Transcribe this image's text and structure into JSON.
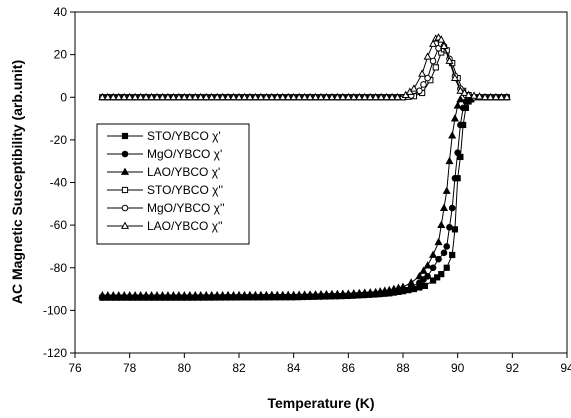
{
  "chart_data": {
    "type": "line",
    "title": "",
    "xlabel": "Temperature (K)",
    "ylabel": "AC Magnetic Susceptibility (arb.unit)",
    "xlim": [
      76,
      94
    ],
    "ylim": [
      -120,
      40
    ],
    "xticks": [
      "76",
      "78",
      "80",
      "82",
      "84",
      "86",
      "88",
      "90",
      "92",
      "94"
    ],
    "yticks": [
      "-120",
      "-100",
      "-80",
      "-60",
      "-40",
      "-20",
      "0",
      "20",
      "40"
    ],
    "grid": false,
    "legend_position": "left",
    "series": [
      {
        "name": "STO/YBCO χ'",
        "marker": "square",
        "filled": true,
        "x": [
          77.0,
          80.0,
          84.0,
          86.0,
          87.0,
          87.5,
          88.0,
          88.4,
          88.8,
          89.1,
          89.4,
          89.6,
          89.8,
          89.9,
          90.0,
          90.1,
          90.2,
          90.3,
          90.4,
          90.5
        ],
        "y": [
          -94,
          -94,
          -93.8,
          -93.2,
          -92.5,
          -92,
          -91,
          -90,
          -88.5,
          -86,
          -83,
          -80,
          -74,
          -62,
          -38,
          -28,
          -13,
          -5,
          -2,
          -1
        ]
      },
      {
        "name": "MgO/YBCO χ'",
        "marker": "circle",
        "filled": true,
        "x": [
          77.0,
          80.0,
          84.0,
          86.0,
          87.0,
          87.5,
          88.0,
          88.3,
          88.6,
          88.9,
          89.1,
          89.3,
          89.5,
          89.6,
          89.7,
          89.8,
          89.9,
          90.0,
          90.1,
          90.2,
          90.3
        ],
        "y": [
          -94,
          -94,
          -93.8,
          -93.2,
          -92.5,
          -91.8,
          -90.5,
          -89,
          -87,
          -84,
          -80,
          -76,
          -73,
          -70,
          -61,
          -52,
          -38,
          -26,
          -13,
          -5,
          -2
        ]
      },
      {
        "name": "LAO/YBCO χ'",
        "marker": "triangle",
        "filled": true,
        "x": [
          77.0,
          80.0,
          84.0,
          86.0,
          87.0,
          87.5,
          88.0,
          88.3,
          88.6,
          88.9,
          89.1,
          89.3,
          89.4,
          89.5,
          89.6,
          89.7,
          89.8,
          89.9,
          90.0,
          90.1
        ],
        "y": [
          -93,
          -93,
          -92.8,
          -92.2,
          -91.5,
          -90.5,
          -89,
          -87,
          -84,
          -79,
          -74,
          -68,
          -60,
          -52,
          -44,
          -30,
          -18,
          -10,
          -4,
          -1
        ]
      },
      {
        "name": "STO/YBCO χ''",
        "marker": "square",
        "filled": false,
        "x": [
          77.0,
          80.0,
          84.0,
          88.0,
          88.4,
          88.7,
          89.0,
          89.2,
          89.4,
          89.5,
          89.6,
          89.8,
          90.0,
          90.2,
          90.4,
          90.6,
          91.0,
          91.8
        ],
        "y": [
          0,
          0,
          0,
          0,
          0.5,
          2,
          8,
          14,
          21,
          22.5,
          22,
          16,
          9,
          3,
          1,
          0,
          0,
          0
        ]
      },
      {
        "name": "MgO/YBCO χ''",
        "marker": "circle",
        "filled": false,
        "x": [
          77.0,
          80.0,
          84.0,
          88.0,
          88.3,
          88.6,
          88.9,
          89.1,
          89.3,
          89.4,
          89.5,
          89.7,
          89.9,
          90.1,
          90.3,
          90.6,
          91.0,
          91.8
        ],
        "y": [
          0,
          0,
          0,
          0,
          0.8,
          3,
          9,
          17,
          23,
          25,
          24,
          18,
          10,
          4,
          1,
          0,
          0,
          0
        ]
      },
      {
        "name": "LAO/YBCO χ''",
        "marker": "triangle",
        "filled": false,
        "x": [
          77.0,
          80.0,
          84.0,
          87.8,
          88.1,
          88.4,
          88.7,
          88.9,
          89.1,
          89.2,
          89.3,
          89.4,
          89.5,
          89.7,
          89.9,
          90.1,
          90.4,
          91.0,
          91.8
        ],
        "y": [
          0,
          0,
          0,
          0,
          1,
          4,
          11,
          19,
          25,
          27.5,
          28,
          27,
          24,
          17,
          9,
          3,
          1,
          0,
          0
        ]
      }
    ]
  }
}
